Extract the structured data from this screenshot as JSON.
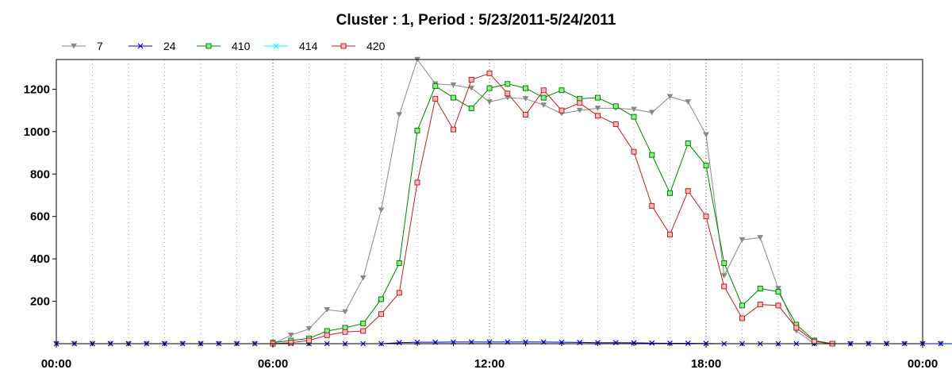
{
  "chart_data": {
    "type": "line",
    "title": "Cluster : 1, Period : 5/23/2011-5/24/2011",
    "xlabel": "",
    "ylabel": "",
    "x_range": [
      "00:00",
      "00:00"
    ],
    "x_tick_labels": [
      "00:00",
      "06:00",
      "12:00",
      "18:00",
      "00:00"
    ],
    "ylim": [
      0,
      1340
    ],
    "y_ticks": [
      200,
      400,
      600,
      800,
      1000,
      1200
    ],
    "grid": {
      "vertical_dotted": true,
      "horizontal": false
    },
    "legend_position": "top-left",
    "x_interval_minutes": 30,
    "series": [
      {
        "name": "7",
        "color": "#888888",
        "marker": "triangle-down",
        "values": [
          0,
          0,
          0,
          0,
          0,
          0,
          0,
          0,
          0,
          0,
          0,
          0,
          0,
          40,
          70,
          160,
          150,
          310,
          630,
          1080,
          1340,
          1225,
          1220,
          1205,
          1140,
          1160,
          1155,
          1125,
          1085,
          1100,
          1110,
          1110,
          1105,
          1090,
          1165,
          1140,
          985,
          320,
          490,
          500,
          260,
          60,
          0,
          0,
          0,
          0,
          0,
          0,
          0,
          0,
          0
        ]
      },
      {
        "name": "24",
        "color": "#0000cc",
        "marker": "x",
        "values": [
          0,
          0,
          0,
          0,
          0,
          0,
          0,
          0,
          0,
          0,
          0,
          0,
          0,
          0,
          0,
          0,
          0,
          0,
          0,
          5,
          7,
          7,
          8,
          8,
          8,
          8,
          8,
          8,
          7,
          6,
          5,
          5,
          4,
          3,
          2,
          2,
          1,
          0,
          0,
          0,
          0,
          0,
          0,
          0,
          0,
          0,
          0,
          0,
          0,
          0,
          0
        ]
      },
      {
        "name": "410",
        "color": "#008000",
        "fill": "#90ee90",
        "marker": "square",
        "values": [
          null,
          null,
          null,
          null,
          null,
          null,
          null,
          null,
          null,
          null,
          null,
          null,
          5,
          15,
          25,
          60,
          75,
          95,
          210,
          380,
          1005,
          1215,
          1160,
          1110,
          1205,
          1225,
          1205,
          1160,
          1195,
          1155,
          1160,
          1120,
          1070,
          890,
          710,
          945,
          840,
          380,
          180,
          260,
          245,
          90,
          15,
          0,
          null,
          null,
          null,
          null,
          null,
          null,
          null
        ]
      },
      {
        "name": "414",
        "color": "#00ffff",
        "marker": "x",
        "values": []
      },
      {
        "name": "420",
        "color": "#b22222",
        "fill": "#ffb6c1",
        "marker": "square",
        "values": [
          null,
          null,
          null,
          null,
          null,
          null,
          null,
          null,
          null,
          null,
          null,
          null,
          0,
          5,
          15,
          40,
          55,
          60,
          140,
          240,
          760,
          1155,
          1010,
          1245,
          1275,
          1180,
          1080,
          1195,
          1100,
          1135,
          1075,
          1035,
          905,
          650,
          515,
          720,
          600,
          270,
          120,
          185,
          180,
          75,
          10,
          0,
          null,
          null,
          null,
          null,
          null,
          null,
          null
        ]
      }
    ]
  }
}
